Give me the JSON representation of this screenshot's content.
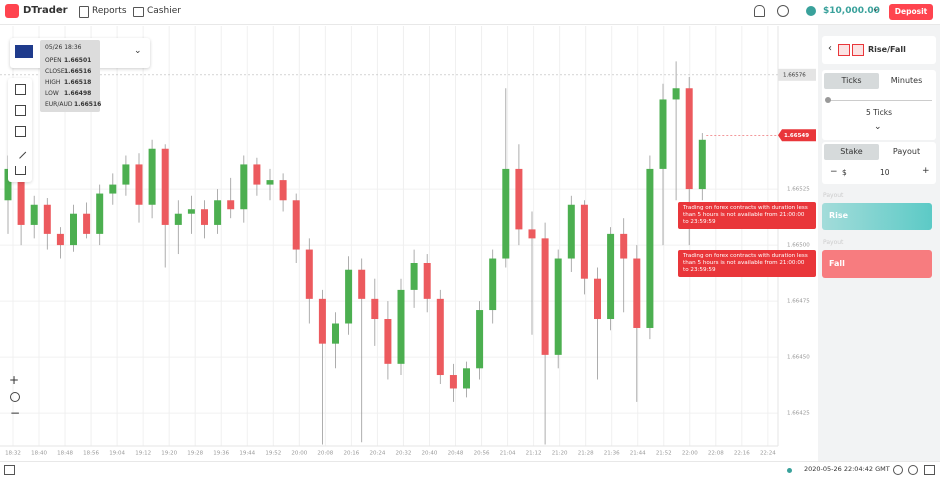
{
  "header": {
    "brand": "DTrader",
    "nav": [
      "Reports",
      "Cashier"
    ],
    "balance": "$10,000.00",
    "deposit": "Deposit"
  },
  "tooltip": {
    "date": "05/26 18:36",
    "rows": [
      [
        "OPEN",
        "1.66501"
      ],
      [
        "CLOSE",
        "1.66516"
      ],
      [
        "HIGH",
        "1.66518"
      ],
      [
        "LOW",
        "1.66498"
      ],
      [
        "EUR/AUD",
        "1.66516"
      ]
    ]
  },
  "chart_data": {
    "type": "candlestick",
    "candles": [
      [
        1.6652,
        1.6654,
        1.66505,
        1.66534
      ],
      [
        1.66534,
        1.66538,
        1.665,
        1.66509
      ],
      [
        1.66509,
        1.66522,
        1.66503,
        1.66518
      ],
      [
        1.66518,
        1.66521,
        1.66498,
        1.66505
      ],
      [
        1.66505,
        1.66508,
        1.66494,
        1.665
      ],
      [
        1.665,
        1.66518,
        1.66497,
        1.66514
      ],
      [
        1.66514,
        1.66519,
        1.66503,
        1.66505
      ],
      [
        1.66505,
        1.66527,
        1.665,
        1.66523
      ],
      [
        1.66523,
        1.66532,
        1.66518,
        1.66527
      ],
      [
        1.66527,
        1.6654,
        1.66522,
        1.66536
      ],
      [
        1.66536,
        1.66541,
        1.6651,
        1.66518
      ],
      [
        1.66518,
        1.66547,
        1.66512,
        1.66543
      ],
      [
        1.66543,
        1.66545,
        1.6649,
        1.66509
      ],
      [
        1.66509,
        1.6652,
        1.66496,
        1.66514
      ],
      [
        1.66514,
        1.66522,
        1.66505,
        1.66516
      ],
      [
        1.66516,
        1.6652,
        1.66503,
        1.66509
      ],
      [
        1.66509,
        1.66525,
        1.66505,
        1.6652
      ],
      [
        1.6652,
        1.6653,
        1.66512,
        1.66516
      ],
      [
        1.66516,
        1.6654,
        1.6651,
        1.66536
      ],
      [
        1.66536,
        1.66539,
        1.66522,
        1.66527
      ],
      [
        1.66527,
        1.66534,
        1.6652,
        1.66529
      ],
      [
        1.66529,
        1.66532,
        1.66515,
        1.6652
      ],
      [
        1.6652,
        1.66523,
        1.66492,
        1.66498
      ],
      [
        1.66498,
        1.66503,
        1.66465,
        1.66476
      ],
      [
        1.66476,
        1.6648,
        1.66411,
        1.66456
      ],
      [
        1.66456,
        1.6647,
        1.66445,
        1.66465
      ],
      [
        1.66465,
        1.66495,
        1.6646,
        1.66489
      ],
      [
        1.66489,
        1.66494,
        1.66412,
        1.66476
      ],
      [
        1.66476,
        1.66485,
        1.66455,
        1.66467
      ],
      [
        1.66467,
        1.66475,
        1.6644,
        1.66447
      ],
      [
        1.66447,
        1.66485,
        1.66442,
        1.6648
      ],
      [
        1.6648,
        1.66498,
        1.66472,
        1.66492
      ],
      [
        1.66492,
        1.66496,
        1.6647,
        1.66476
      ],
      [
        1.66476,
        1.6648,
        1.66438,
        1.66442
      ],
      [
        1.66442,
        1.66447,
        1.6643,
        1.66436
      ],
      [
        1.66436,
        1.66448,
        1.66432,
        1.66445
      ],
      [
        1.66445,
        1.66475,
        1.6644,
        1.66471
      ],
      [
        1.66471,
        1.66498,
        1.66465,
        1.66494
      ],
      [
        1.66494,
        1.6657,
        1.6649,
        1.66534
      ],
      [
        1.66534,
        1.66545,
        1.665,
        1.66507
      ],
      [
        1.66507,
        1.66515,
        1.6646,
        1.66503
      ],
      [
        1.66503,
        1.6651,
        1.66411,
        1.66451
      ],
      [
        1.66451,
        1.66498,
        1.66445,
        1.66494
      ],
      [
        1.66494,
        1.66522,
        1.66488,
        1.66518
      ],
      [
        1.66518,
        1.6652,
        1.66478,
        1.66485
      ],
      [
        1.66485,
        1.6649,
        1.6644,
        1.66467
      ],
      [
        1.66467,
        1.66508,
        1.66462,
        1.66505
      ],
      [
        1.66505,
        1.66512,
        1.6647,
        1.66494
      ],
      [
        1.66494,
        1.665,
        1.6643,
        1.66463
      ],
      [
        1.66463,
        1.6654,
        1.66458,
        1.66534
      ],
      [
        1.66534,
        1.66572,
        1.665,
        1.66565
      ],
      [
        1.66565,
        1.66582,
        1.6652,
        1.6657
      ],
      [
        1.6657,
        1.66575,
        1.665,
        1.66525
      ],
      [
        1.66525,
        1.6655,
        1.6652,
        1.66547
      ]
    ],
    "ylim": [
      1.66413,
      1.66596
    ],
    "yticks": [
      1.66425,
      {
        "value": 1.6645,
        "label": "1.66450"
      },
      1.66475,
      {
        "value": 1.665,
        "label": "1.66500"
      },
      1.66525
    ],
    "xtick_labels": [
      "18:32",
      "18:40",
      "18:48",
      "18:56",
      "19:04",
      "19:12",
      "19:20",
      "19:28",
      "19:36",
      "19:44",
      "19:52",
      "20:00",
      "20:08",
      "20:16",
      "20:24",
      "20:32",
      "20:40",
      "20:48",
      "20:56",
      "21:04",
      "21:12",
      "21:20",
      "21:28",
      "21:36",
      "21:44",
      "21:52",
      "22:00",
      "22:08",
      "22:16",
      "22:24"
    ],
    "current_price": 1.66549,
    "crosshair_price": 1.66576,
    "colors": {
      "up": "#4caf50",
      "down": "#ec5a5e"
    },
    "grid": true
  },
  "trade_panel": {
    "contract": "Rise/Fall",
    "duration_tabs": [
      "Ticks",
      "Minutes"
    ],
    "duration": "5 Ticks",
    "amount_tabs": [
      "Stake",
      "Payout"
    ],
    "currency": "$",
    "amount": "10",
    "payout_label": "Payout",
    "rise": "Rise",
    "fall": "Fall"
  },
  "notices": [
    "Trading on forex contracts with duration less than 5 hours is not available from 21:00:00 to 23:59:59",
    "Trading on forex contracts with duration less than 5 hours is not available from 21:00:00 to 23:59:59"
  ],
  "footer": {
    "time": "2020-05-26 22:04:42 GMT"
  }
}
